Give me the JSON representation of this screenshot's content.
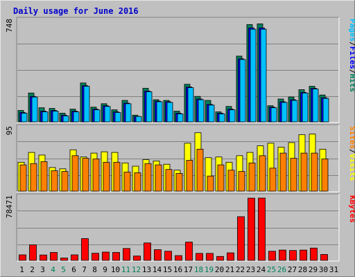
{
  "chart_data": {
    "title": "Daily usage for June 2016",
    "colors": {
      "hits": "#00805c",
      "files": "#0000ff",
      "pages": "#00c0ff",
      "visits": "#ffff00",
      "sites": "#ff8000",
      "kbytes": "#ff0000",
      "bg": "#c0c0c0",
      "weekend_label": "#00805c",
      "title": "#0000cc"
    },
    "days": [
      "1",
      "2",
      "3",
      "4",
      "5",
      "6",
      "7",
      "8",
      "9",
      "10",
      "11",
      "12",
      "13",
      "14",
      "15",
      "16",
      "17",
      "18",
      "19",
      "20",
      "21",
      "22",
      "23",
      "24",
      "25",
      "26",
      "27",
      "28",
      "29",
      "30",
      "31"
    ],
    "weekend_days": [
      "4",
      "5",
      "11",
      "12",
      "18",
      "19",
      "25",
      "26"
    ],
    "charts": [
      {
        "type": "bar",
        "ymax_label": "748",
        "ymax": 748,
        "series_labels": [
          "Pages",
          "/",
          "Files",
          "/",
          "Hits"
        ],
        "series_label_colors": [
          "pages",
          "sep",
          "files",
          "sep",
          "hits"
        ],
        "series": [
          {
            "name": "Hits",
            "key": "hits",
            "values": [
              85,
              215,
              105,
              100,
              65,
              95,
              290,
              110,
              135,
              90,
              160,
              50,
              250,
              165,
              160,
              80,
              280,
              190,
              160,
              75,
              115,
              490,
              725,
              730,
              120,
              170,
              185,
              240,
              265,
              200,
              0
            ]
          },
          {
            "name": "Files",
            "key": "files",
            "values": [
              70,
              190,
              80,
              85,
              50,
              80,
              270,
              95,
              120,
              75,
              140,
              40,
              230,
              155,
              150,
              65,
              260,
              170,
              130,
              65,
              95,
              470,
              700,
              700,
              110,
              150,
              165,
              220,
              250,
              180,
              0
            ]
          },
          {
            "name": "Pages",
            "key": "pages",
            "values": [
              65,
              185,
              75,
              80,
              45,
              75,
              265,
              90,
              115,
              70,
              135,
              40,
              225,
              150,
              145,
              60,
              255,
              165,
              125,
              60,
              90,
              465,
              690,
              690,
              105,
              145,
              160,
              215,
              245,
              175,
              0
            ]
          }
        ]
      },
      {
        "type": "bar",
        "ymax_label": "95",
        "ymax": 95,
        "series_labels": [
          "Sites",
          "/",
          "Visits"
        ],
        "series_label_colors": [
          "sites",
          "sep",
          "visits"
        ],
        "series": [
          {
            "name": "Visits",
            "key": "visits",
            "values": [
              44,
              59,
              55,
              36,
              34,
              63,
              52,
              58,
              60,
              59,
              43,
              38,
              48,
              46,
              41,
              32,
              73,
              89,
              51,
              52,
              44,
              54,
              59,
              69,
              73,
              67,
              74,
              86,
              87,
              64,
              0
            ]
          },
          {
            "name": "Sites",
            "key": "sites",
            "values": [
              40,
              42,
              45,
              31,
              30,
              54,
              50,
              49,
              44,
              44,
              29,
              28,
              42,
              40,
              33,
              27,
              47,
              64,
              23,
              40,
              32,
              30,
              43,
              54,
              35,
              58,
              50,
              58,
              58,
              49,
              0
            ]
          }
        ]
      },
      {
        "type": "bar",
        "ymax_label": "78471",
        "ymax": 78471,
        "series_labels": [
          "KBytes"
        ],
        "series_label_colors": [
          "kbytes"
        ],
        "series": [
          {
            "name": "KBytes",
            "key": "kbytes",
            "values": [
              7000,
              19500,
              6800,
              10000,
              3000,
              7000,
              27500,
              9000,
              10500,
              10000,
              15000,
              5500,
              22000,
              13500,
              11500,
              6000,
              23000,
              8800,
              8800,
              5000,
              9500,
              55000,
              78400,
              78471,
              11500,
              13000,
              12500,
              13000,
              15500,
              7500,
              0
            ]
          }
        ]
      }
    ]
  }
}
